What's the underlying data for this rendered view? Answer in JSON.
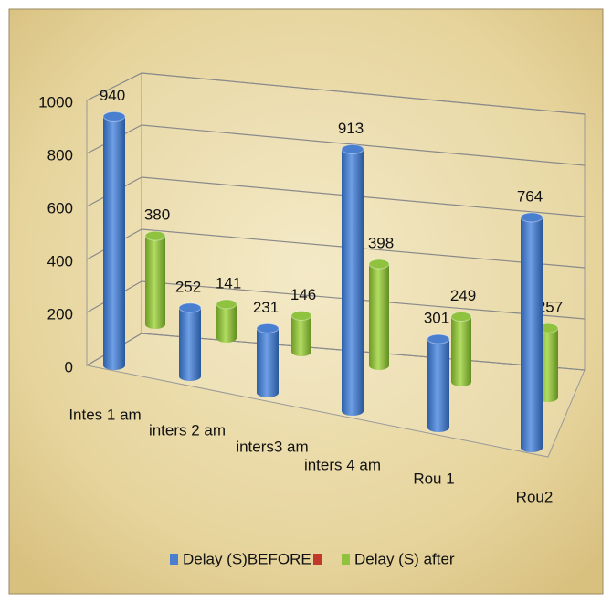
{
  "chart_data": {
    "type": "bar3d",
    "categories": [
      "Intes 1 am",
      "inters 2 am",
      "inters3 am",
      "inters 4 am",
      "Rou 1",
      "Rou2"
    ],
    "series": [
      {
        "name": "Delay (S)BEFORE",
        "color": "#4a7fd0",
        "values": [
          940,
          252,
          231,
          913,
          301,
          764
        ]
      },
      {
        "name": "Delay (S) after",
        "color": "#8fc23f",
        "values": [
          380,
          141,
          146,
          398,
          249,
          257
        ]
      }
    ],
    "ylim": [
      0,
      1000
    ],
    "yticks": [
      0,
      200,
      400,
      600,
      800,
      1000
    ],
    "grid": true,
    "legend": "bottom"
  }
}
